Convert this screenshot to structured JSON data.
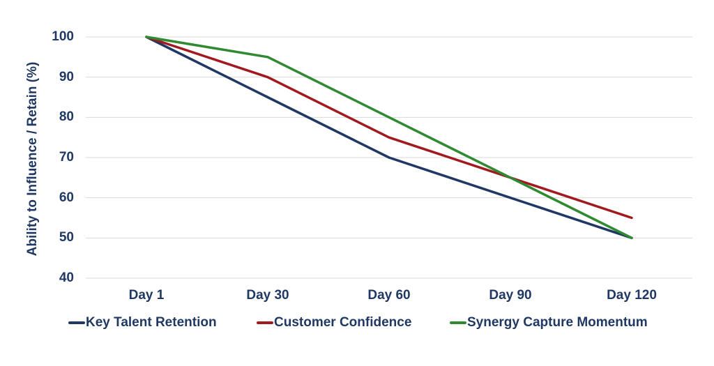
{
  "chart_data": {
    "type": "line",
    "title": "",
    "categories": [
      "Day 1",
      "Day 30",
      "Day 60",
      "Day 90",
      "Day 120"
    ],
    "xlabel": "",
    "ylabel": "Ability to Influence / Retain (%)",
    "ylim": [
      40,
      100
    ],
    "ytick_step": 10,
    "ytick_labels": [
      "100",
      "90",
      "80",
      "70",
      "60",
      "50",
      "40"
    ],
    "grid": true,
    "legend_position": "bottom",
    "series": [
      {
        "name": "Key Talent Retention",
        "color": "#1F3864",
        "values": [
          100,
          85,
          70,
          60,
          50
        ]
      },
      {
        "name": "Customer Confidence",
        "color": "#A11A1F",
        "values": [
          100,
          90,
          75,
          65,
          55
        ]
      },
      {
        "name": "Synergy Capture Momentum",
        "color": "#2F8A32",
        "values": [
          100,
          95,
          80,
          65,
          50
        ]
      }
    ]
  },
  "colors": {
    "axis_text": "#1F3864",
    "gridline": "#D9D9D9",
    "background": "#FFFFFF"
  }
}
